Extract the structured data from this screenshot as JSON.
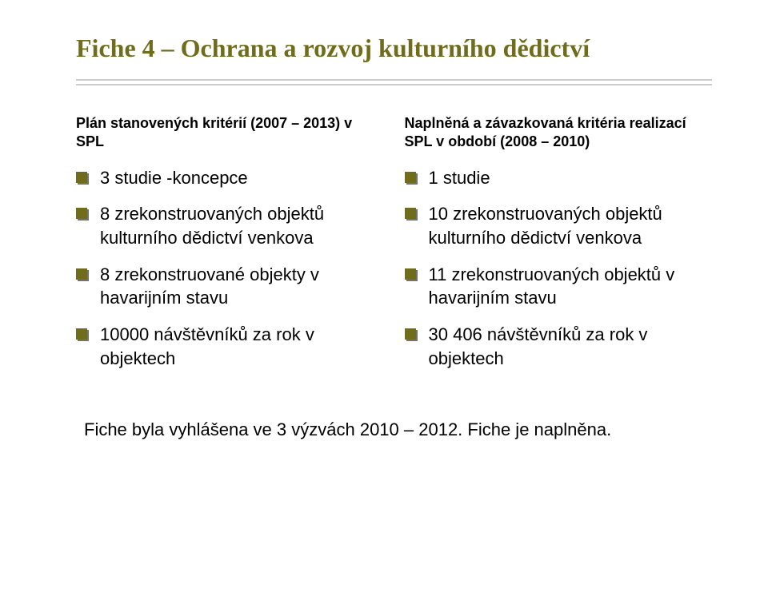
{
  "title": "Fiche 4 – Ochrana a rozvoj kulturního dědictví",
  "left": {
    "heading": "Plán stanovených kritérií (2007 – 2013) v SPL",
    "items": [
      "3 studie -koncepce",
      "8 zrekonstruovaných objektů kulturního dědictví venkova",
      "8 zrekonstruované objekty v havarijním stavu",
      "10000 návštěvníků za rok v objektech"
    ]
  },
  "right": {
    "heading": "Naplněná a závazkovaná kritéria realizací SPL v období (2008 – 2010)",
    "items": [
      "1 studie",
      "10 zrekonstruovaných objektů kulturního dědictví venkova",
      "11 zrekonstruovaných objektů v havarijním stavu",
      "30 406 návštěvníků za rok v objektech"
    ]
  },
  "footer": "Fiche byla vyhlášena ve 3 výzvách 2010 – 2012. Fiche je naplněna.",
  "colors": {
    "accent": "#6f6d1b",
    "rule": "#cccccc",
    "text": "#000000",
    "background": "#ffffff"
  }
}
